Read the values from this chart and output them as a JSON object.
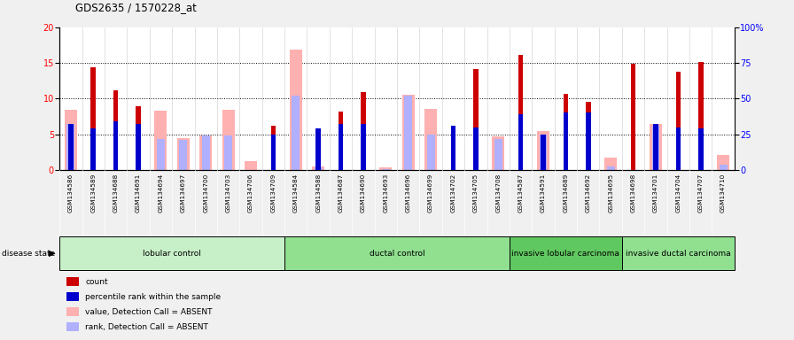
{
  "title": "GDS2635 / 1570228_at",
  "samples": [
    "GSM134586",
    "GSM134589",
    "GSM134688",
    "GSM134691",
    "GSM134694",
    "GSM134697",
    "GSM134700",
    "GSM134703",
    "GSM134706",
    "GSM134709",
    "GSM134584",
    "GSM134588",
    "GSM134687",
    "GSM134690",
    "GSM134693",
    "GSM134696",
    "GSM134699",
    "GSM134702",
    "GSM134705",
    "GSM134708",
    "GSM134587",
    "GSM134591",
    "GSM134689",
    "GSM134692",
    "GSM134695",
    "GSM134698",
    "GSM134701",
    "GSM134704",
    "GSM134707",
    "GSM134710"
  ],
  "count": [
    0,
    14.4,
    11.2,
    8.9,
    0,
    0,
    0,
    0,
    0,
    6.2,
    0,
    0,
    8.2,
    10.9,
    0,
    0,
    0,
    0,
    14.1,
    0,
    16.1,
    0,
    10.7,
    9.6,
    0,
    14.9,
    0,
    13.8,
    15.1,
    0
  ],
  "percentile": [
    32,
    29,
    34,
    32,
    0,
    0,
    0,
    0,
    0,
    25,
    0,
    29,
    32,
    32,
    0,
    0,
    0,
    31,
    30,
    0,
    39,
    25,
    40,
    40,
    0,
    0,
    32,
    30,
    29,
    0
  ],
  "value_absent": [
    8.4,
    0,
    0,
    0,
    8.3,
    4.5,
    4.8,
    8.4,
    1.3,
    0,
    16.9,
    0.5,
    0,
    0,
    0.4,
    10.6,
    8.6,
    0,
    0,
    4.7,
    0,
    5.4,
    0,
    0,
    1.7,
    0,
    6.5,
    0,
    0,
    2.1
  ],
  "rank_absent": [
    32,
    0,
    0,
    0,
    22,
    21,
    24,
    24,
    0,
    0,
    52,
    2,
    0,
    0,
    0.5,
    52,
    25,
    0,
    0,
    22,
    0,
    25,
    0,
    0,
    2.5,
    0,
    31,
    0,
    0,
    4
  ],
  "groups": [
    {
      "label": "lobular control",
      "start": 0,
      "end": 10
    },
    {
      "label": "ductal control",
      "start": 10,
      "end": 20
    },
    {
      "label": "invasive lobular carcinoma",
      "start": 20,
      "end": 25
    },
    {
      "label": "invasive ductal carcinoma",
      "start": 25,
      "end": 30
    }
  ],
  "group_colors": [
    "#c8f0c8",
    "#90e090",
    "#60c860",
    "#90e090"
  ],
  "ylim_left": [
    0,
    20
  ],
  "ylim_right": [
    0,
    100
  ],
  "yticks_left": [
    0,
    5,
    10,
    15,
    20
  ],
  "yticks_right": [
    0,
    25,
    50,
    75,
    100
  ],
  "color_count": "#cc0000",
  "color_percentile": "#0000cc",
  "color_value_absent": "#ffb0b0",
  "color_rank_absent": "#b0b0ff",
  "fig_bg": "#f0f0f0",
  "plot_bg": "#ffffff",
  "tick_bg": "#d8d8d8"
}
